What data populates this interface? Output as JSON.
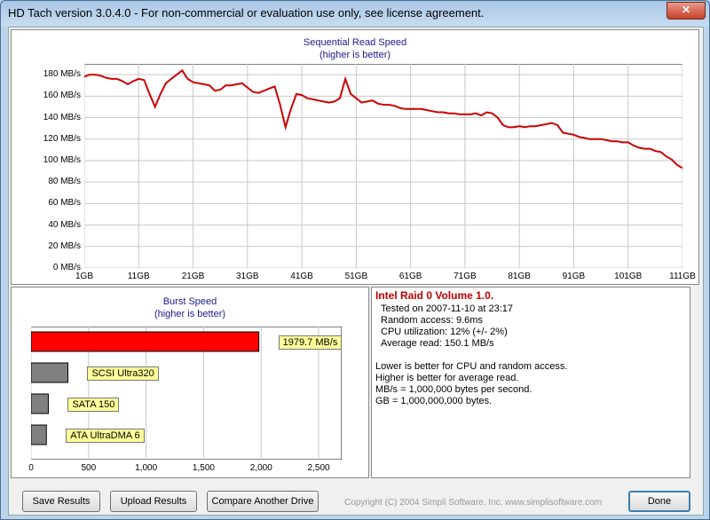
{
  "window": {
    "title": "HD Tach version 3.0.4.0  - For non-commercial or evaluation use only, see license agreement.",
    "close_glyph": "✕"
  },
  "seq_chart": {
    "title": "Sequential Read Speed",
    "subtitle": "(higher is better)",
    "y_ticks": [
      "180 MB/s",
      "160 MB/s",
      "140 MB/s",
      "120 MB/s",
      "100 MB/s",
      "80 MB/s",
      "60 MB/s",
      "40 MB/s",
      "20 MB/s",
      "0 MB/s"
    ],
    "x_ticks": [
      "1GB",
      "11GB",
      "21GB",
      "31GB",
      "41GB",
      "51GB",
      "61GB",
      "71GB",
      "81GB",
      "91GB",
      "101GB",
      "111GB"
    ]
  },
  "burst_chart": {
    "title": "Burst Speed",
    "subtitle": "(higher is better)",
    "bars": [
      {
        "label": "1979.7 MB/s",
        "value": 1979.7,
        "color": "#ff0000"
      },
      {
        "label": "SCSI Ultra320",
        "value": 320,
        "color": "#808080"
      },
      {
        "label": "SATA 150",
        "value": 150,
        "color": "#808080"
      },
      {
        "label": "ATA UltraDMA 6",
        "value": 133,
        "color": "#808080"
      }
    ],
    "x_ticks": [
      "0",
      "500",
      "1,000",
      "1,500",
      "2,000",
      "2,500"
    ]
  },
  "info": {
    "drive": "Intel Raid 0 Volume 1.0.",
    "tested": "Tested on 2007-11-10 at 23:17",
    "random_access": "Random access: 9.6ms",
    "cpu": "CPU utilization: 12% (+/- 2%)",
    "avg_read": "Average read: 150.1 MB/s",
    "note1": "Lower is better for CPU and random access.",
    "note2": "Higher is better for average read.",
    "note3": "MB/s = 1,000,000 bytes per second.",
    "note4": "GB = 1,000,000,000 bytes."
  },
  "buttons": {
    "save": "Save Results",
    "upload": "Upload Results",
    "compare": "Compare Another Drive",
    "done": "Done"
  },
  "copyright": "Copyright (C) 2004 Simpli Software, Inc. www.simplisoftware.com",
  "chart_data": [
    {
      "type": "line",
      "title": "Sequential Read Speed",
      "subtitle": "(higher is better)",
      "xlabel": "",
      "ylabel": "",
      "x_unit": "GB",
      "xlim": [
        1,
        111
      ],
      "ylim": [
        0,
        190
      ],
      "x": [
        1,
        2,
        3,
        4,
        5,
        6,
        7,
        8,
        9,
        10,
        11,
        12,
        13,
        14,
        15,
        16,
        17,
        18,
        19,
        20,
        21,
        22,
        23,
        24,
        25,
        26,
        27,
        28,
        29,
        30,
        31,
        32,
        33,
        34,
        35,
        36,
        37,
        38,
        39,
        40,
        41,
        42,
        43,
        44,
        45,
        46,
        47,
        48,
        49,
        50,
        51,
        52,
        53,
        54,
        55,
        56,
        57,
        58,
        59,
        60,
        61,
        62,
        63,
        64,
        65,
        66,
        67,
        68,
        69,
        70,
        71,
        72,
        73,
        74,
        75,
        76,
        77,
        78,
        79,
        80,
        81,
        82,
        83,
        84,
        85,
        86,
        87,
        88,
        89,
        90,
        91,
        92,
        93,
        94,
        95,
        96,
        97,
        98,
        99,
        100,
        101,
        102,
        103,
        104,
        105,
        106,
        107,
        108,
        109,
        110,
        111
      ],
      "series": [
        {
          "color": "#cc0000",
          "values": [
            178,
            180,
            180,
            179,
            177,
            176,
            176,
            174,
            171,
            174,
            176,
            175,
            162,
            150,
            162,
            172,
            176,
            180,
            184,
            176,
            173,
            172,
            171,
            170,
            165,
            166,
            170,
            170,
            171,
            172,
            168,
            164,
            163,
            165,
            167,
            169,
            152,
            131,
            148,
            162,
            161,
            158,
            157,
            156,
            155,
            154,
            155,
            158,
            176,
            162,
            158,
            154,
            155,
            156,
            153,
            152,
            152,
            151,
            149,
            148,
            148,
            148,
            148,
            147,
            146,
            145,
            145,
            144,
            144,
            143,
            143,
            143,
            144,
            142,
            145,
            144,
            140,
            133,
            131,
            131,
            132,
            131,
            132,
            132,
            133,
            134,
            135,
            133,
            126,
            125,
            124,
            122,
            121,
            120,
            120,
            120,
            119,
            118,
            118,
            117,
            117,
            114,
            112,
            111,
            111,
            109,
            108,
            104,
            101,
            96,
            93
          ]
        }
      ],
      "x_tick_labels": [
        "1GB",
        "11GB",
        "21GB",
        "31GB",
        "41GB",
        "51GB",
        "61GB",
        "71GB",
        "81GB",
        "91GB",
        "101GB",
        "111GB"
      ],
      "y_tick_labels": [
        "0 MB/s",
        "20 MB/s",
        "40 MB/s",
        "60 MB/s",
        "80 MB/s",
        "100 MB/s",
        "120 MB/s",
        "140 MB/s",
        "160 MB/s",
        "180 MB/s"
      ],
      "grid": true
    },
    {
      "type": "bar",
      "orientation": "horizontal",
      "title": "Burst Speed",
      "subtitle": "(higher is better)",
      "categories": [
        "1979.7 MB/s",
        "SCSI Ultra320",
        "SATA 150",
        "ATA UltraDMA 6"
      ],
      "values": [
        1979.7,
        320,
        150,
        133
      ],
      "xlim": [
        0,
        2700
      ],
      "x_tick_labels": [
        "0",
        "500",
        "1,000",
        "1,500",
        "2,000",
        "2,500"
      ],
      "grid": true
    }
  ]
}
